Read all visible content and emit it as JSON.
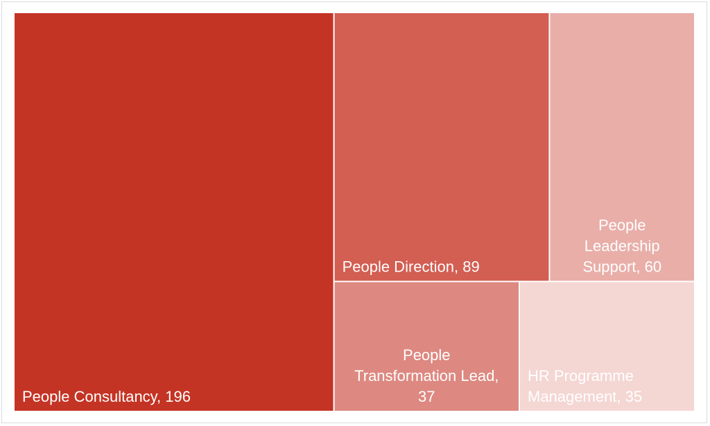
{
  "chart_data": {
    "type": "treemap",
    "title": "",
    "items": [
      {
        "name": "People Consultancy",
        "value": 196,
        "label": "People Consultancy, 196",
        "color": "#c43424",
        "label_lines": [
          "People Consultancy, 196"
        ]
      },
      {
        "name": "People Direction",
        "value": 89,
        "label": "People Direction, 89",
        "color": "#d35e52",
        "label_lines": [
          "People Direction, 89"
        ]
      },
      {
        "name": "People Leadership Support",
        "value": 60,
        "label": "People Leadership Support, 60",
        "color": "#e9aea8",
        "label_lines": [
          "People",
          "Leadership",
          "Support, 60"
        ]
      },
      {
        "name": "People Transformation Lead",
        "value": 37,
        "label": "People Transformation Lead, 37",
        "color": "#dd8880",
        "label_lines": [
          "People",
          "Transformation Lead,",
          "37"
        ]
      },
      {
        "name": "HR Programme Management",
        "value": 35,
        "label": "HR Programme Management, 35",
        "color": "#f4d6d3",
        "label_lines": [
          "HR Programme",
          "Management, 35"
        ]
      }
    ]
  }
}
